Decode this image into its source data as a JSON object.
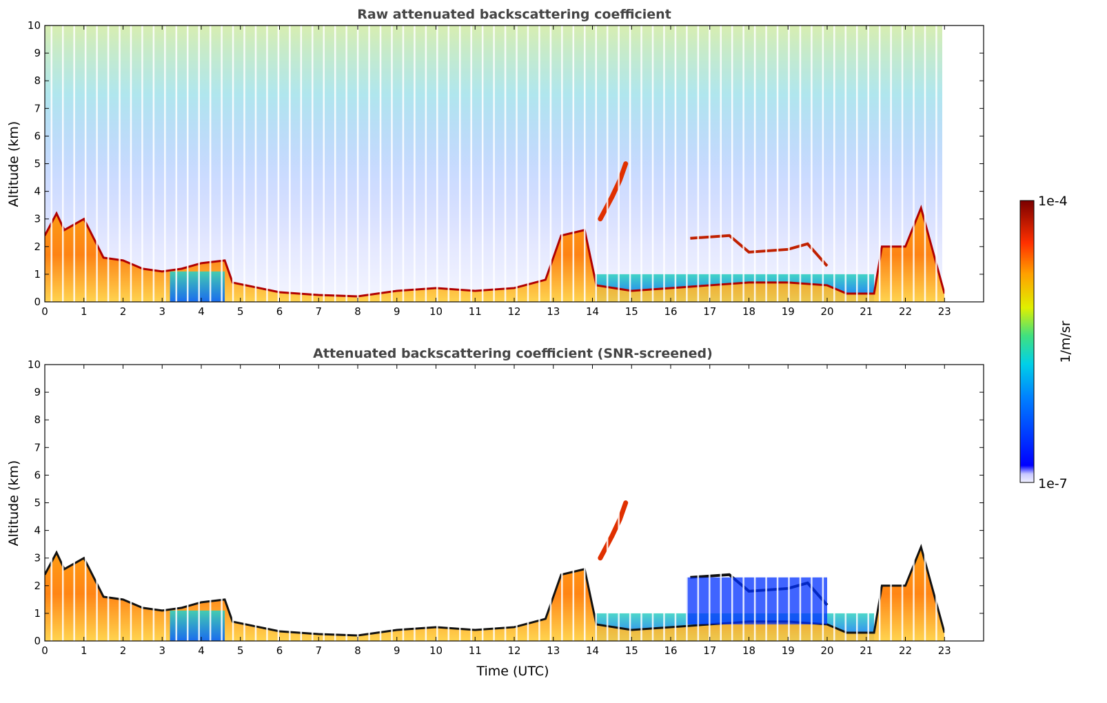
{
  "chart_data": [
    {
      "type": "heatmap",
      "title": "Raw attenuated backscattering coefficient",
      "xlabel": "",
      "ylabel": "Altitude (km)",
      "xlim": [
        0,
        24
      ],
      "ylim": [
        0,
        10
      ],
      "xticks": [
        "0",
        "1",
        "2",
        "3",
        "4",
        "5",
        "6",
        "7",
        "8",
        "9",
        "10",
        "11",
        "12",
        "13",
        "14",
        "15",
        "16",
        "17",
        "18",
        "19",
        "20",
        "21",
        "22",
        "23"
      ],
      "yticks": [
        "0",
        "1",
        "2",
        "3",
        "4",
        "5",
        "6",
        "7",
        "8",
        "9",
        "10"
      ],
      "grid": false,
      "features": {
        "boundary_layer_top_km": [
          [
            0,
            2.4
          ],
          [
            0.3,
            3.2
          ],
          [
            0.5,
            2.6
          ],
          [
            1.0,
            3.0
          ],
          [
            1.5,
            1.6
          ],
          [
            2.0,
            1.5
          ],
          [
            2.5,
            1.2
          ],
          [
            3.0,
            1.1
          ],
          [
            3.5,
            1.2
          ],
          [
            4.0,
            1.4
          ],
          [
            4.6,
            1.5
          ],
          [
            4.8,
            0.7
          ],
          [
            6,
            0.35
          ],
          [
            7,
            0.25
          ],
          [
            8,
            0.2
          ],
          [
            9,
            0.4
          ],
          [
            10,
            0.5
          ],
          [
            11,
            0.4
          ],
          [
            12,
            0.5
          ],
          [
            12.8,
            0.8
          ],
          [
            13.2,
            2.4
          ],
          [
            13.8,
            2.6
          ],
          [
            14.1,
            0.6
          ],
          [
            15,
            0.4
          ],
          [
            16,
            0.5
          ],
          [
            17,
            0.6
          ],
          [
            18,
            0.7
          ],
          [
            19,
            0.7
          ],
          [
            20,
            0.6
          ],
          [
            20.5,
            0.3
          ],
          [
            21.2,
            0.3
          ],
          [
            21.4,
            2.0
          ],
          [
            22,
            2.0
          ],
          [
            22.4,
            3.4
          ],
          [
            23,
            0.3
          ]
        ],
        "elevated_layer_km": [
          [
            14.2,
            3.0
          ],
          [
            14.5,
            3.8
          ],
          [
            14.7,
            4.4
          ],
          [
            14.85,
            5.0
          ]
        ],
        "cloud_layer_km": [
          [
            16.5,
            2.3
          ],
          [
            17.5,
            2.4
          ],
          [
            18,
            1.8
          ],
          [
            19,
            1.9
          ],
          [
            19.5,
            2.1
          ],
          [
            20,
            1.3
          ]
        ]
      }
    },
    {
      "type": "heatmap",
      "title": "Attenuated backscattering coefficient (SNR-screened)",
      "xlabel": "Time (UTC)",
      "ylabel": "Altitude (km)",
      "xlim": [
        0,
        24
      ],
      "ylim": [
        0,
        10
      ],
      "xticks": [
        "0",
        "1",
        "2",
        "3",
        "4",
        "5",
        "6",
        "7",
        "8",
        "9",
        "10",
        "11",
        "12",
        "13",
        "14",
        "15",
        "16",
        "17",
        "18",
        "19",
        "20",
        "21",
        "22",
        "23"
      ],
      "yticks": [
        "0",
        "1",
        "2",
        "3",
        "4",
        "5",
        "6",
        "7",
        "8",
        "9",
        "10"
      ],
      "grid": false
    }
  ],
  "colorbar": {
    "label": "1/m/sr",
    "max_label": "1e-4",
    "min_label": "1e-7",
    "min": 1e-07,
    "max": 0.0001,
    "scale": "log",
    "colormap": "jet",
    "colors": [
      "#e8e8ff",
      "#0000ff",
      "#0096ff",
      "#00e0e0",
      "#30d060",
      "#e0f000",
      "#ffa000",
      "#ff3000",
      "#c00000",
      "#800000"
    ]
  }
}
